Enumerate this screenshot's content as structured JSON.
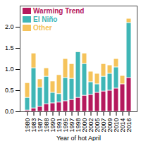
{
  "chart_data": {
    "type": "bar",
    "stacked": true,
    "legend": "top-left",
    "x_label": "Year of hot April",
    "categories": [
      "1980",
      "1983",
      "1987",
      "1988",
      "1990",
      "1991",
      "1995",
      "1997",
      "1998",
      "2000",
      "2002",
      "2005",
      "2007",
      "2009",
      "2010",
      "2014",
      "2016"
    ],
    "series": [
      {
        "name": "Warming Trend",
        "color": "#b5195d",
        "values": [
          0.03,
          0.08,
          0.12,
          0.18,
          0.2,
          0.22,
          0.25,
          0.28,
          0.33,
          0.38,
          0.4,
          0.45,
          0.48,
          0.5,
          0.55,
          0.65,
          0.8
        ]
      },
      {
        "name": "El Niño",
        "color": "#3fb6b6",
        "values": [
          0.3,
          0.95,
          0.45,
          0.65,
          0.25,
          0.2,
          0.55,
          0.5,
          1.08,
          0.75,
          0.3,
          0.2,
          0.35,
          0.4,
          0.5,
          0,
          1.3
        ]
      },
      {
        "name": "Other",
        "color": "#f5c35b",
        "values": [
          0.35,
          0.35,
          0.2,
          0.2,
          0.27,
          0.45,
          0.45,
          0.35,
          0.02,
          0.25,
          0.25,
          0.25,
          0.3,
          0.2,
          0.2,
          0.2,
          0.1
        ]
      }
    ],
    "ylim": [
      0,
      2.5
    ],
    "yticks": [
      0,
      0.5,
      1,
      1.5,
      2
    ]
  }
}
